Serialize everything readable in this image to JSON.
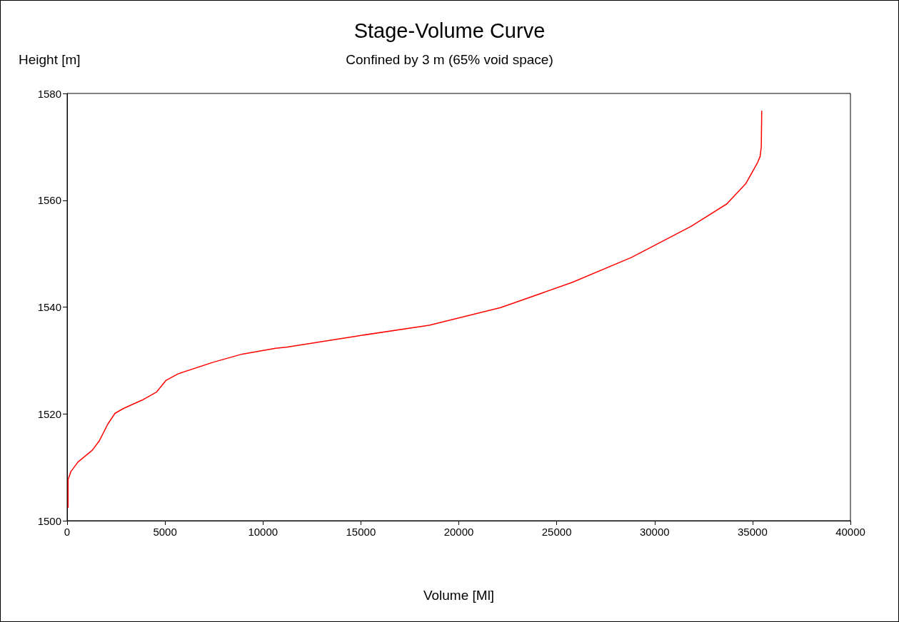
{
  "chart_data": {
    "type": "line",
    "title": "Stage-Volume Curve",
    "subtitle": "Confined by 3 m (65% void space)",
    "xlabel": "Volume [Ml]",
    "ylabel": "Height [m]",
    "xlim": [
      0,
      40000
    ],
    "xticks": [
      0,
      5000,
      10000,
      15000,
      20000,
      25000,
      30000,
      35000,
      40000
    ],
    "ylim": [
      1500,
      1580
    ],
    "yticks": [
      1500,
      1520,
      1540,
      1560,
      1580
    ],
    "grid": false,
    "marker": "none",
    "line_style": "solid",
    "series": [
      {
        "color": "#ff0000",
        "x": [
          50,
          50,
          193,
          558,
          1287,
          1652,
          2078,
          2443,
          2869,
          3840,
          4569,
          5057,
          5663,
          7486,
          8944,
          10647,
          11194,
          14840,
          18487,
          22133,
          25780,
          28819,
          31858,
          33681,
          34653,
          35265,
          35386,
          35447,
          35470
        ],
        "values": [
          1502.5,
          1507.7,
          1509.2,
          1511.0,
          1513.2,
          1515.0,
          1518.1,
          1520.1,
          1521.0,
          1522.6,
          1524.1,
          1526.3,
          1527.5,
          1529.7,
          1531.2,
          1532.3,
          1532.5,
          1534.6,
          1536.6,
          1539.9,
          1544.6,
          1549.3,
          1555.1,
          1559.3,
          1563.1,
          1567.1,
          1568.2,
          1570.0,
          1576.7
        ]
      }
    ]
  }
}
